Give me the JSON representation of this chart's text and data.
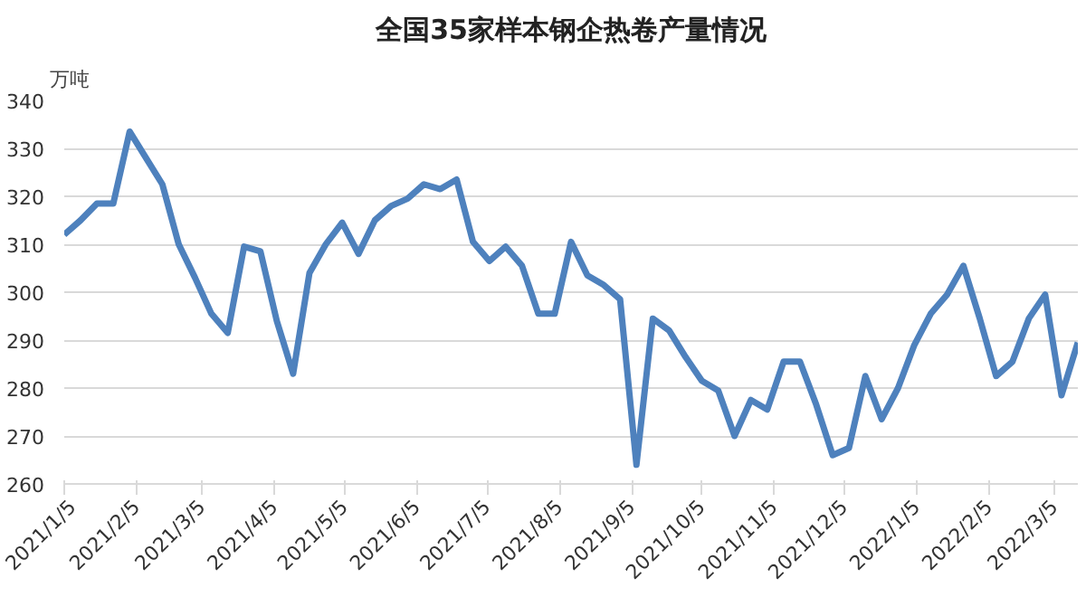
{
  "chart_data": {
    "type": "line",
    "title": "全国35家样本钢企热卷产量情况",
    "ylabel": "万吨",
    "x": [
      "2021-01-05",
      "2021-01-12",
      "2021-01-19",
      "2021-01-26",
      "2021-02-02",
      "2021-02-09",
      "2021-02-16",
      "2021-02-23",
      "2021-03-02",
      "2021-03-09",
      "2021-03-16",
      "2021-03-23",
      "2021-03-30",
      "2021-04-06",
      "2021-04-13",
      "2021-04-20",
      "2021-04-27",
      "2021-05-04",
      "2021-05-11",
      "2021-05-18",
      "2021-05-25",
      "2021-06-01",
      "2021-06-08",
      "2021-06-15",
      "2021-06-22",
      "2021-06-29",
      "2021-07-06",
      "2021-07-13",
      "2021-07-20",
      "2021-07-27",
      "2021-08-03",
      "2021-08-10",
      "2021-08-17",
      "2021-08-24",
      "2021-08-31",
      "2021-09-07",
      "2021-09-14",
      "2021-09-21",
      "2021-09-28",
      "2021-10-05",
      "2021-10-12",
      "2021-10-19",
      "2021-10-26",
      "2021-11-02",
      "2021-11-09",
      "2021-11-16",
      "2021-11-23",
      "2021-11-30",
      "2021-12-07",
      "2021-12-14",
      "2021-12-21",
      "2021-12-28",
      "2022-01-04",
      "2022-01-11",
      "2022-01-18",
      "2022-01-25",
      "2022-02-01",
      "2022-02-08",
      "2022-02-15",
      "2022-02-22",
      "2022-03-01",
      "2022-03-08",
      "2022-03-15"
    ],
    "series": [
      {
        "color": "#4e81bd",
        "values": [
          312,
          315,
          318.5,
          318.5,
          333.5,
          328,
          322.5,
          310,
          303,
          295.5,
          291.5,
          309.5,
          308.5,
          294,
          283,
          304,
          310,
          314.5,
          308,
          315,
          318,
          319.5,
          322.5,
          321.5,
          323.5,
          310.5,
          306.5,
          309.5,
          305.5,
          295.5,
          295.5,
          310.5,
          303.5,
          301.5,
          298.5,
          264,
          294.5,
          292,
          286.5,
          281.5,
          279.5,
          270,
          277.5,
          275.5,
          285.5,
          285.5,
          276.5,
          266,
          267.5,
          282.5,
          273.5,
          280,
          289,
          295.5,
          299.5,
          305.5,
          294.5,
          282.5,
          285.5,
          294.5,
          299.5,
          278.5,
          289.5
        ]
      }
    ],
    "xlim": [
      "2021-01-05",
      "2022-03-15"
    ],
    "xticks": [
      {
        "value": "2021-01-05",
        "label": "2021/1/5"
      },
      {
        "value": "2021-02-05",
        "label": "2021/2/5"
      },
      {
        "value": "2021-03-05",
        "label": "2021/3/5"
      },
      {
        "value": "2021-04-05",
        "label": "2021/4/5"
      },
      {
        "value": "2021-05-05",
        "label": "2021/5/5"
      },
      {
        "value": "2021-06-05",
        "label": "2021/6/5"
      },
      {
        "value": "2021-07-05",
        "label": "2021/7/5"
      },
      {
        "value": "2021-08-05",
        "label": "2021/8/5"
      },
      {
        "value": "2021-09-05",
        "label": "2021/9/5"
      },
      {
        "value": "2021-10-05",
        "label": "2021/10/5"
      },
      {
        "value": "2021-11-05",
        "label": "2021/11/5"
      },
      {
        "value": "2021-12-05",
        "label": "2021/12/5"
      },
      {
        "value": "2022-01-05",
        "label": "2022/1/5"
      },
      {
        "value": "2022-02-05",
        "label": "2022/2/5"
      },
      {
        "value": "2022-03-05",
        "label": "2022/3/5"
      }
    ],
    "ylim": [
      260,
      340
    ],
    "yticks": [
      260,
      270,
      280,
      290,
      300,
      310,
      320,
      330,
      340
    ],
    "grid": "y",
    "marker": "none",
    "line_style": "solid"
  }
}
